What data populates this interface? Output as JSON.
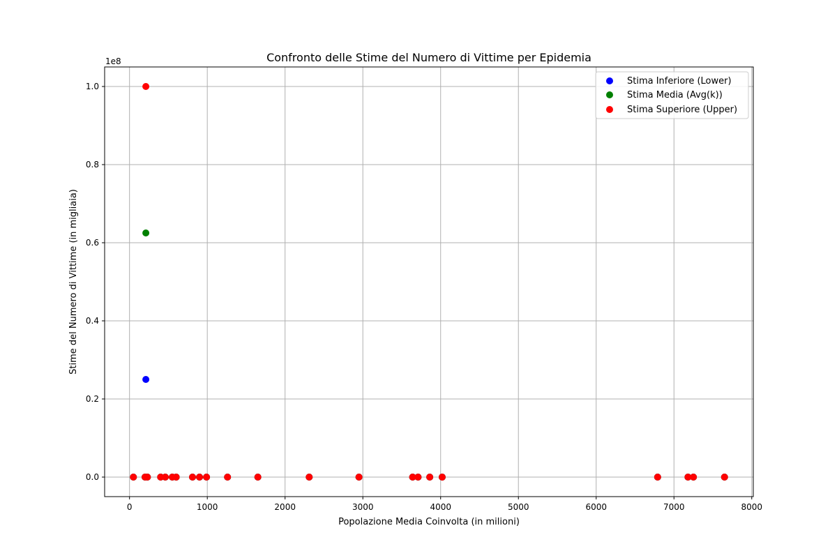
{
  "chart_data": {
    "type": "scatter",
    "title": "Confronto delle Stime del Numero di Vittime per Epidemia",
    "xlabel": "Popolazione Media Coinvolta (in milioni)",
    "ylabel": "Stime del Numero di Vittime (in migliaia)",
    "y_offset_label": "1e8",
    "xlim": [
      -320,
      8020
    ],
    "ylim": [
      -5000000,
      105000000
    ],
    "x_ticks": [
      0,
      1000,
      2000,
      3000,
      4000,
      5000,
      6000,
      7000,
      8000
    ],
    "x_tick_labels": [
      "0",
      "1000",
      "2000",
      "3000",
      "4000",
      "5000",
      "6000",
      "7000",
      "8000"
    ],
    "y_ticks": [
      0,
      20000000,
      40000000,
      60000000,
      80000000,
      100000000
    ],
    "y_tick_labels": [
      "0.0",
      "0.2",
      "0.4",
      "0.6",
      "0.8",
      "1.0"
    ],
    "grid": true,
    "legend_position": "top-right",
    "series": [
      {
        "name": "Stima Inferiore (Lower)",
        "color": "#0000ff",
        "points": [
          [
            50,
            0
          ],
          [
            200,
            0
          ],
          [
            210,
            25000000
          ],
          [
            230,
            0
          ],
          [
            400,
            0
          ],
          [
            460,
            0
          ],
          [
            550,
            0
          ],
          [
            600,
            0
          ],
          [
            810,
            0
          ],
          [
            900,
            0
          ],
          [
            990,
            0
          ],
          [
            1260,
            0
          ],
          [
            1650,
            0
          ],
          [
            2310,
            0
          ],
          [
            2950,
            0
          ],
          [
            3640,
            0
          ],
          [
            3710,
            0
          ],
          [
            3860,
            0
          ],
          [
            4020,
            0
          ],
          [
            6790,
            0
          ],
          [
            7180,
            0
          ],
          [
            7250,
            0
          ],
          [
            7650,
            0
          ]
        ]
      },
      {
        "name": "Stima Media (Avg(k))",
        "color": "#008000",
        "points": [
          [
            50,
            0
          ],
          [
            200,
            0
          ],
          [
            210,
            62500000
          ],
          [
            230,
            0
          ],
          [
            400,
            0
          ],
          [
            460,
            0
          ],
          [
            550,
            0
          ],
          [
            600,
            0
          ],
          [
            810,
            0
          ],
          [
            900,
            0
          ],
          [
            990,
            0
          ],
          [
            1260,
            0
          ],
          [
            1650,
            0
          ],
          [
            2310,
            0
          ],
          [
            2950,
            0
          ],
          [
            3640,
            0
          ],
          [
            3710,
            0
          ],
          [
            3860,
            0
          ],
          [
            4020,
            0
          ],
          [
            6790,
            0
          ],
          [
            7180,
            0
          ],
          [
            7250,
            0
          ],
          [
            7650,
            0
          ]
        ]
      },
      {
        "name": "Stima Superiore (Upper)",
        "color": "#ff0000",
        "points": [
          [
            50,
            0
          ],
          [
            200,
            0
          ],
          [
            210,
            100000000
          ],
          [
            230,
            0
          ],
          [
            400,
            0
          ],
          [
            460,
            0
          ],
          [
            550,
            0
          ],
          [
            600,
            0
          ],
          [
            810,
            0
          ],
          [
            900,
            0
          ],
          [
            990,
            0
          ],
          [
            1260,
            0
          ],
          [
            1650,
            0
          ],
          [
            2310,
            0
          ],
          [
            2950,
            0
          ],
          [
            3640,
            0
          ],
          [
            3710,
            0
          ],
          [
            3860,
            0
          ],
          [
            4020,
            0
          ],
          [
            6790,
            0
          ],
          [
            7180,
            0
          ],
          [
            7250,
            0
          ],
          [
            7650,
            0
          ]
        ]
      }
    ]
  }
}
